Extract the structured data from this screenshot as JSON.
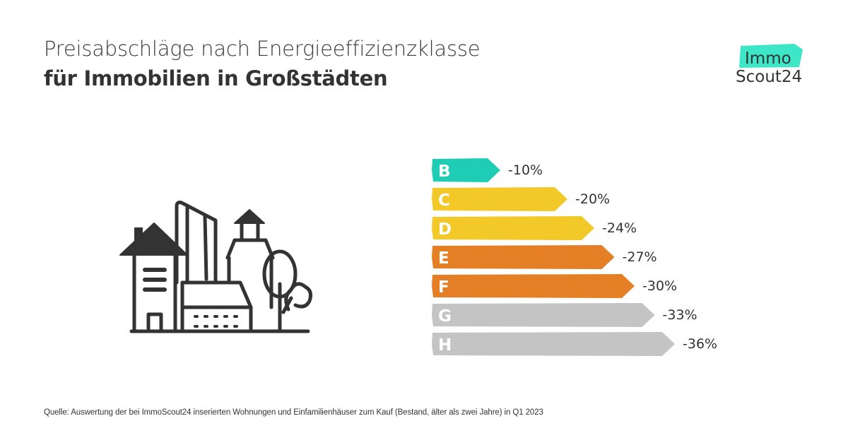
{
  "header": {
    "title_line1": "Preisabschläge nach Energieeffizienzklasse",
    "title_line2": "für Immobilien in Großstädten"
  },
  "logo": {
    "line1": "Immo",
    "line2": "Scout24",
    "accent_color": "#3ee6c8"
  },
  "illustration": {
    "icon": "city-buildings-icon"
  },
  "chart_data": {
    "type": "bar",
    "orientation": "horizontal",
    "title": "Preisabschläge nach Energieeffizienzklasse für Immobilien in Großstädten",
    "xlabel": "",
    "ylabel": "Energieeffizienzklasse",
    "categories": [
      "B",
      "C",
      "D",
      "E",
      "F",
      "G",
      "H"
    ],
    "values": [
      -10,
      -20,
      -24,
      -27,
      -30,
      -33,
      -36
    ],
    "value_labels": [
      "-10%",
      "-20%",
      "-24%",
      "-27%",
      "-30%",
      "-33%",
      "-36%"
    ],
    "unit": "%",
    "colors": [
      "#1ecdb4",
      "#f2c928",
      "#f2c928",
      "#e57f26",
      "#e57f26",
      "#c4c4c4",
      "#c4c4c4"
    ],
    "grid": false,
    "legend": "none"
  },
  "footer": {
    "source": "Quelle: Auswertung der bei ImmoScout24 inserierten Wohnungen und Einfamilienhäuser zum Kauf  (Bestand, älter als zwei Jahre)  in Q1 2023"
  }
}
